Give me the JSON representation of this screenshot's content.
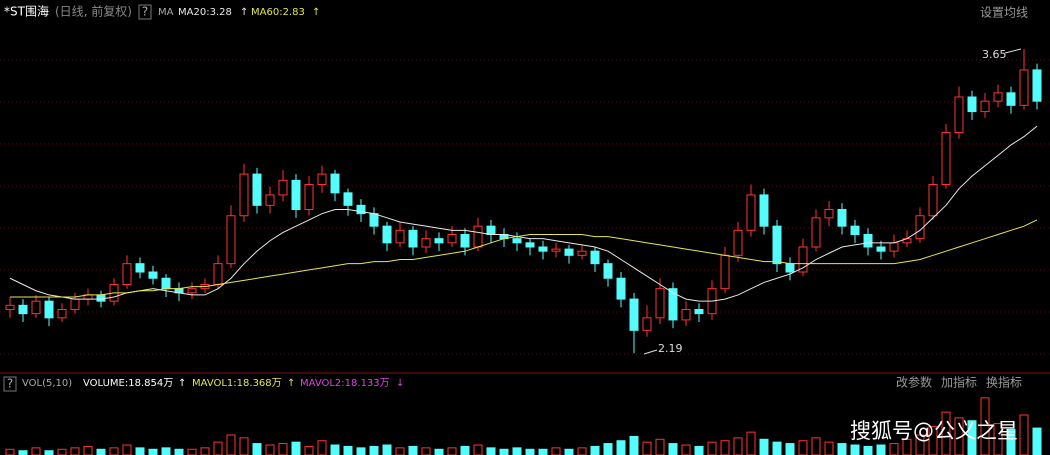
{
  "chart_data": {
    "type": "candlestick",
    "header": {
      "title": "*ST围海",
      "subtitle": "(日线, 前复权)",
      "help": "?",
      "ma": "MA",
      "ma20_label": "MA20:3.28",
      "ma60_label": "MA60:2.83",
      "settings": "设置均线"
    },
    "volume_header": {
      "help": "?",
      "name": "VOL(5,10)",
      "volume_label": "VOLUME:18.854万",
      "mavol1_label": "MAVOL1:18.368万",
      "mavol2_label": "MAVOL2:18.133万",
      "buttons": [
        "改参数",
        "加指标",
        "换指标"
      ]
    },
    "annotations": {
      "high": "3.65",
      "low": "2.19"
    },
    "watermark": "搜狐号@公义之星",
    "ylim": [
      2.1,
      3.78
    ],
    "vol_ylim": [
      0,
      42
    ],
    "up_color": "#ff3232",
    "down_color": "#54fcfc",
    "ma20_color": "#e8e8e8",
    "ma60_color": "#e6e64c",
    "candles": [
      [
        2.4,
        2.46,
        2.36,
        2.42
      ],
      [
        2.42,
        2.45,
        2.34,
        2.38
      ],
      [
        2.38,
        2.47,
        2.36,
        2.44
      ],
      [
        2.44,
        2.46,
        2.32,
        2.36
      ],
      [
        2.36,
        2.43,
        2.34,
        2.4
      ],
      [
        2.4,
        2.48,
        2.38,
        2.45
      ],
      [
        2.45,
        2.5,
        2.42,
        2.47
      ],
      [
        2.47,
        2.49,
        2.41,
        2.44
      ],
      [
        2.44,
        2.55,
        2.42,
        2.52
      ],
      [
        2.52,
        2.66,
        2.5,
        2.62
      ],
      [
        2.62,
        2.65,
        2.55,
        2.58
      ],
      [
        2.58,
        2.61,
        2.52,
        2.55
      ],
      [
        2.55,
        2.57,
        2.46,
        2.5
      ],
      [
        2.5,
        2.53,
        2.44,
        2.48
      ],
      [
        2.48,
        2.53,
        2.45,
        2.5
      ],
      [
        2.5,
        2.55,
        2.48,
        2.52
      ],
      [
        2.52,
        2.66,
        2.5,
        2.62
      ],
      [
        2.62,
        2.9,
        2.6,
        2.85
      ],
      [
        2.85,
        3.1,
        2.82,
        3.05
      ],
      [
        3.05,
        3.08,
        2.86,
        2.9
      ],
      [
        2.9,
        2.99,
        2.86,
        2.95
      ],
      [
        2.95,
        3.07,
        2.92,
        3.02
      ],
      [
        3.02,
        3.05,
        2.84,
        2.88
      ],
      [
        2.88,
        3.04,
        2.85,
        3.0
      ],
      [
        3.0,
        3.09,
        2.96,
        3.05
      ],
      [
        3.05,
        3.07,
        2.92,
        2.96
      ],
      [
        2.96,
        2.98,
        2.85,
        2.9
      ],
      [
        2.9,
        2.93,
        2.82,
        2.86
      ],
      [
        2.86,
        2.89,
        2.76,
        2.8
      ],
      [
        2.8,
        2.82,
        2.68,
        2.72
      ],
      [
        2.72,
        2.82,
        2.7,
        2.78
      ],
      [
        2.78,
        2.8,
        2.66,
        2.7
      ],
      [
        2.7,
        2.78,
        2.67,
        2.74
      ],
      [
        2.74,
        2.77,
        2.68,
        2.72
      ],
      [
        2.72,
        2.8,
        2.7,
        2.76
      ],
      [
        2.76,
        2.79,
        2.66,
        2.7
      ],
      [
        2.7,
        2.84,
        2.68,
        2.8
      ],
      [
        2.8,
        2.83,
        2.72,
        2.76
      ],
      [
        2.76,
        2.79,
        2.7,
        2.74
      ],
      [
        2.74,
        2.77,
        2.68,
        2.72
      ],
      [
        2.72,
        2.74,
        2.66,
        2.7
      ],
      [
        2.7,
        2.73,
        2.64,
        2.68
      ],
      [
        2.68,
        2.72,
        2.65,
        2.69
      ],
      [
        2.69,
        2.71,
        2.62,
        2.66
      ],
      [
        2.66,
        2.71,
        2.64,
        2.68
      ],
      [
        2.68,
        2.7,
        2.58,
        2.62
      ],
      [
        2.62,
        2.64,
        2.51,
        2.55
      ],
      [
        2.55,
        2.58,
        2.41,
        2.45
      ],
      [
        2.45,
        2.48,
        2.19,
        2.3
      ],
      [
        2.3,
        2.42,
        2.27,
        2.36
      ],
      [
        2.36,
        2.55,
        2.33,
        2.5
      ],
      [
        2.5,
        2.53,
        2.31,
        2.35
      ],
      [
        2.35,
        2.44,
        2.32,
        2.4
      ],
      [
        2.4,
        2.43,
        2.34,
        2.38
      ],
      [
        2.38,
        2.54,
        2.35,
        2.5
      ],
      [
        2.5,
        2.7,
        2.48,
        2.66
      ],
      [
        2.66,
        2.82,
        2.63,
        2.78
      ],
      [
        2.78,
        3.0,
        2.75,
        2.95
      ],
      [
        2.95,
        2.98,
        2.76,
        2.8
      ],
      [
        2.8,
        2.83,
        2.58,
        2.62
      ],
      [
        2.62,
        2.65,
        2.54,
        2.58
      ],
      [
        2.58,
        2.74,
        2.56,
        2.7
      ],
      [
        2.7,
        2.88,
        2.68,
        2.84
      ],
      [
        2.84,
        2.92,
        2.8,
        2.88
      ],
      [
        2.88,
        2.91,
        2.76,
        2.8
      ],
      [
        2.8,
        2.83,
        2.72,
        2.76
      ],
      [
        2.76,
        2.79,
        2.66,
        2.7
      ],
      [
        2.7,
        2.73,
        2.64,
        2.68
      ],
      [
        2.68,
        2.76,
        2.65,
        2.72
      ],
      [
        2.72,
        2.78,
        2.7,
        2.74
      ],
      [
        2.74,
        2.89,
        2.72,
        2.85
      ],
      [
        2.85,
        3.04,
        2.83,
        3.0
      ],
      [
        3.0,
        3.29,
        2.98,
        3.25
      ],
      [
        3.25,
        3.47,
        3.22,
        3.42
      ],
      [
        3.42,
        3.45,
        3.31,
        3.35
      ],
      [
        3.35,
        3.44,
        3.32,
        3.4
      ],
      [
        3.4,
        3.48,
        3.37,
        3.44
      ],
      [
        3.44,
        3.47,
        3.34,
        3.38
      ],
      [
        3.38,
        3.65,
        3.36,
        3.55
      ],
      [
        3.55,
        3.58,
        3.36,
        3.4
      ]
    ],
    "ma20": [
      2.55,
      2.52,
      2.49,
      2.47,
      2.46,
      2.45,
      2.45,
      2.45,
      2.46,
      2.48,
      2.49,
      2.5,
      2.49,
      2.48,
      2.47,
      2.47,
      2.5,
      2.55,
      2.62,
      2.68,
      2.73,
      2.77,
      2.8,
      2.83,
      2.86,
      2.88,
      2.88,
      2.87,
      2.86,
      2.84,
      2.82,
      2.81,
      2.8,
      2.79,
      2.78,
      2.78,
      2.77,
      2.76,
      2.76,
      2.75,
      2.74,
      2.74,
      2.73,
      2.72,
      2.71,
      2.7,
      2.68,
      2.64,
      2.6,
      2.56,
      2.52,
      2.48,
      2.45,
      2.44,
      2.44,
      2.45,
      2.47,
      2.5,
      2.53,
      2.55,
      2.57,
      2.6,
      2.64,
      2.67,
      2.7,
      2.71,
      2.72,
      2.72,
      2.72,
      2.74,
      2.78,
      2.84,
      2.9,
      2.98,
      3.04,
      3.09,
      3.14,
      3.19,
      3.23,
      3.28
    ],
    "ma60": [
      2.46,
      2.46,
      2.46,
      2.46,
      2.46,
      2.46,
      2.47,
      2.47,
      2.48,
      2.48,
      2.49,
      2.49,
      2.5,
      2.5,
      2.51,
      2.51,
      2.52,
      2.53,
      2.54,
      2.55,
      2.56,
      2.57,
      2.58,
      2.59,
      2.6,
      2.61,
      2.62,
      2.62,
      2.63,
      2.63,
      2.64,
      2.64,
      2.65,
      2.66,
      2.67,
      2.68,
      2.7,
      2.72,
      2.74,
      2.75,
      2.76,
      2.76,
      2.76,
      2.76,
      2.76,
      2.75,
      2.75,
      2.74,
      2.73,
      2.72,
      2.71,
      2.7,
      2.69,
      2.68,
      2.67,
      2.66,
      2.65,
      2.64,
      2.63,
      2.63,
      2.62,
      2.62,
      2.62,
      2.62,
      2.62,
      2.62,
      2.62,
      2.62,
      2.62,
      2.63,
      2.64,
      2.66,
      2.68,
      2.7,
      2.72,
      2.74,
      2.76,
      2.78,
      2.8,
      2.83
    ],
    "volume": [
      4,
      3,
      5,
      3,
      4,
      5,
      6,
      4,
      5,
      7,
      5,
      4,
      5,
      4,
      4,
      5,
      9,
      14,
      12,
      8,
      7,
      8,
      9,
      6,
      10,
      7,
      6,
      5,
      6,
      7,
      5,
      6,
      5,
      4,
      5,
      6,
      7,
      5,
      4,
      5,
      4,
      4,
      5,
      4,
      5,
      6,
      8,
      10,
      13,
      9,
      11,
      8,
      7,
      6,
      9,
      10,
      12,
      16,
      11,
      9,
      8,
      10,
      12,
      9,
      8,
      7,
      6,
      7,
      8,
      11,
      14,
      20,
      30,
      26,
      24,
      40,
      22,
      18,
      28,
      18.854
    ]
  }
}
